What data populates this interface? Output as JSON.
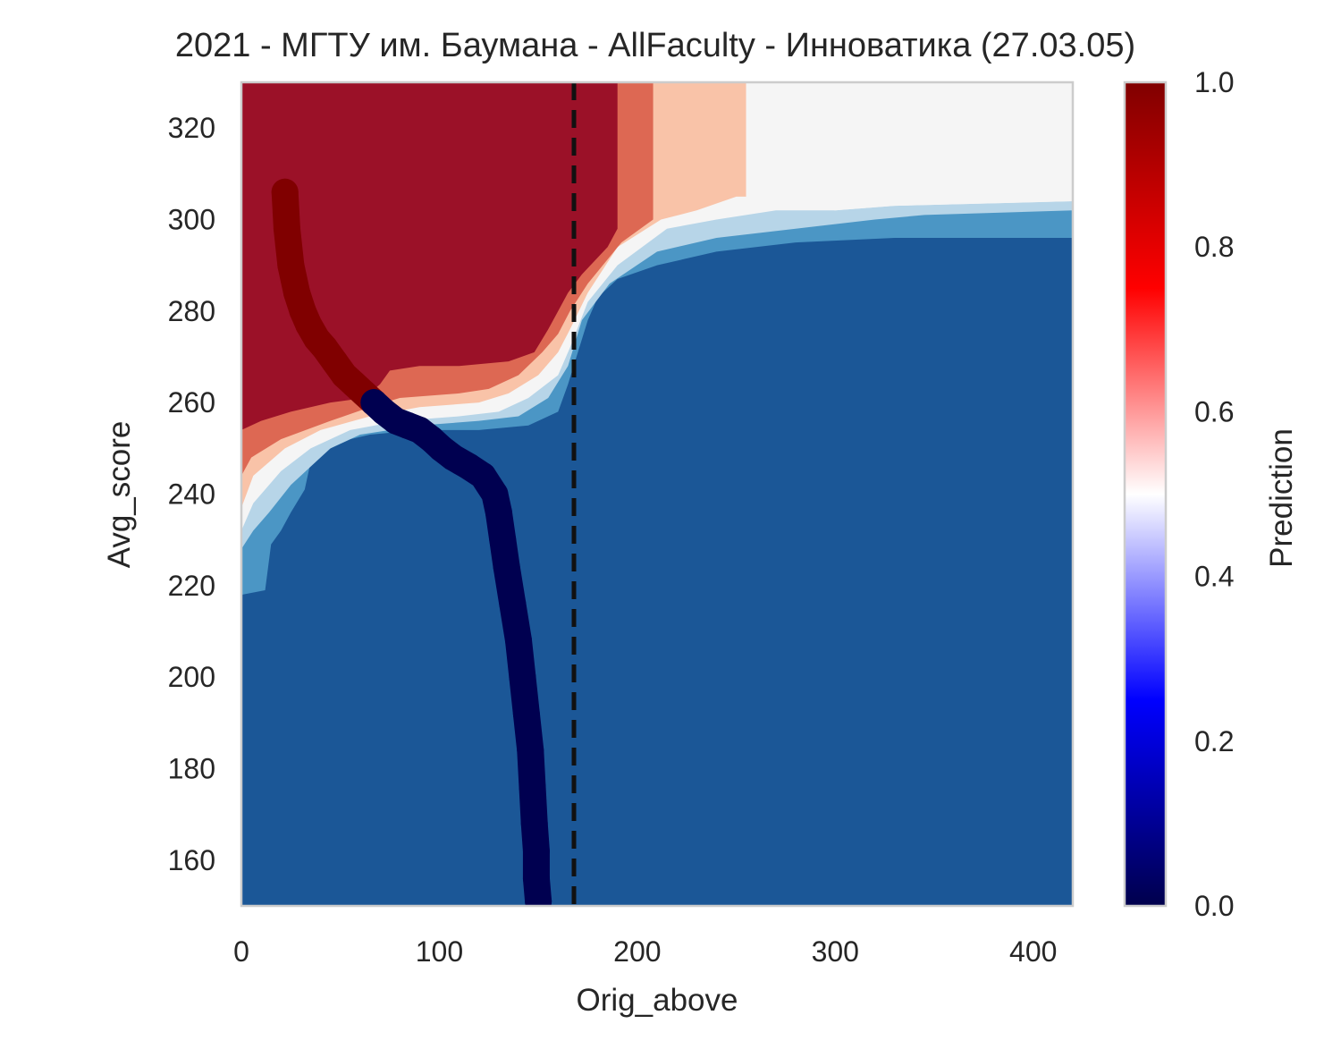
{
  "chart_data": {
    "type": "heatmap",
    "title": "2021 - МГТУ им. Баумана - AllFaculty - Инноватика (27.03.05)",
    "xlabel": "Orig_above",
    "ylabel": "Avg_score",
    "xlim": [
      0,
      420
    ],
    "ylim": [
      150,
      330
    ],
    "xticks": [
      0,
      100,
      200,
      300,
      400
    ],
    "yticks": [
      160,
      180,
      200,
      220,
      240,
      260,
      280,
      300,
      320
    ],
    "grid": false,
    "colorbar": {
      "label": "Prediction",
      "range": [
        0,
        1
      ],
      "ticks": [
        "0.0",
        "0.2",
        "0.4",
        "0.6",
        "0.8",
        "1.0"
      ],
      "colormap": "seismic"
    },
    "vertical_line": {
      "x": 168,
      "style": "dashed",
      "color": "#111111"
    },
    "contour_levels": [
      {
        "level": "0.0-0.1",
        "color": "#1b5797"
      },
      {
        "level": "0.1-0.2",
        "color": "#4b96c5"
      },
      {
        "level": "0.2-0.4",
        "color": "#b7d5e8"
      },
      {
        "level": "0.4-0.6",
        "color": "#f5f5f5"
      },
      {
        "level": "0.6-0.8",
        "color": "#f9c3a8"
      },
      {
        "level": "0.8-0.9",
        "color": "#dd6853"
      },
      {
        "level": "0.9-1.0",
        "color": "#9b1128"
      }
    ],
    "level_boundaries": [
      {
        "between": "red/salmon",
        "points": [
          [
            0,
            254
          ],
          [
            10,
            256
          ],
          [
            25,
            258
          ],
          [
            45,
            260
          ],
          [
            62,
            261
          ],
          [
            70,
            264
          ],
          [
            75,
            267
          ],
          [
            90,
            268
          ],
          [
            110,
            268
          ],
          [
            135,
            269
          ],
          [
            148,
            271
          ],
          [
            155,
            276
          ],
          [
            160,
            280
          ],
          [
            165,
            284
          ],
          [
            172,
            288
          ],
          [
            185,
            294
          ],
          [
            190,
            298
          ],
          [
            190,
            330
          ]
        ]
      },
      {
        "between": "salmon/peach",
        "points": [
          [
            0,
            244
          ],
          [
            5,
            248
          ],
          [
            20,
            252
          ],
          [
            45,
            256
          ],
          [
            65,
            259
          ],
          [
            80,
            261
          ],
          [
            110,
            262
          ],
          [
            125,
            263
          ],
          [
            140,
            266
          ],
          [
            152,
            271
          ],
          [
            160,
            275
          ],
          [
            166,
            280
          ],
          [
            175,
            286
          ],
          [
            192,
            295
          ],
          [
            208,
            300
          ],
          [
            208,
            330
          ]
        ]
      },
      {
        "between": "peach/white",
        "points": [
          [
            0,
            237
          ],
          [
            6,
            244
          ],
          [
            22,
            250
          ],
          [
            40,
            254
          ],
          [
            65,
            257
          ],
          [
            90,
            259
          ],
          [
            120,
            260
          ],
          [
            135,
            262
          ],
          [
            150,
            266
          ],
          [
            160,
            271
          ],
          [
            166,
            276
          ],
          [
            175,
            284
          ],
          [
            190,
            294
          ],
          [
            212,
            300
          ],
          [
            230,
            302
          ],
          [
            250,
            305
          ],
          [
            255,
            305
          ],
          [
            255,
            330
          ]
        ]
      },
      {
        "between": "white/lightblue",
        "points": [
          [
            0,
            232
          ],
          [
            6,
            238
          ],
          [
            20,
            245
          ],
          [
            35,
            250
          ],
          [
            55,
            254
          ],
          [
            80,
            256
          ],
          [
            110,
            257
          ],
          [
            130,
            258
          ],
          [
            145,
            261
          ],
          [
            160,
            266
          ],
          [
            166,
            272
          ],
          [
            175,
            282
          ],
          [
            190,
            290
          ],
          [
            215,
            298
          ],
          [
            240,
            300
          ],
          [
            270,
            302
          ],
          [
            300,
            302
          ],
          [
            330,
            303
          ],
          [
            420,
            304
          ]
        ]
      },
      {
        "between": "lightblue/midblue",
        "points": [
          [
            0,
            228
          ],
          [
            6,
            232
          ],
          [
            14,
            236
          ],
          [
            25,
            242
          ],
          [
            35,
            246
          ],
          [
            45,
            250
          ],
          [
            60,
            253
          ],
          [
            90,
            255
          ],
          [
            120,
            256
          ],
          [
            140,
            257
          ],
          [
            155,
            261
          ],
          [
            165,
            268
          ],
          [
            172,
            278
          ],
          [
            186,
            286
          ],
          [
            210,
            293
          ],
          [
            240,
            296
          ],
          [
            280,
            298
          ],
          [
            320,
            300
          ],
          [
            345,
            301
          ],
          [
            420,
            302
          ]
        ]
      },
      {
        "between": "midblue/darkblue",
        "points": [
          [
            0,
            218
          ],
          [
            12,
            219
          ],
          [
            15,
            229
          ],
          [
            20,
            232
          ],
          [
            25,
            236
          ],
          [
            32,
            241
          ],
          [
            35,
            247
          ],
          [
            45,
            250
          ],
          [
            55,
            252
          ],
          [
            65,
            253
          ],
          [
            90,
            254
          ],
          [
            120,
            254
          ],
          [
            145,
            255
          ],
          [
            160,
            258
          ],
          [
            165,
            264
          ],
          [
            170,
            271
          ],
          [
            175,
            278
          ],
          [
            180,
            283
          ],
          [
            190,
            287
          ],
          [
            210,
            290
          ],
          [
            240,
            293
          ],
          [
            280,
            295
          ],
          [
            330,
            296
          ],
          [
            420,
            296
          ]
        ]
      }
    ],
    "series": [
      {
        "color": "#800000",
        "x": [
          22,
          23,
          25,
          28,
          31,
          34,
          38,
          42,
          47,
          52,
          57,
          62,
          67
        ],
        "y": [
          306,
          298,
          290,
          284,
          280,
          277,
          274,
          272,
          269,
          266,
          264,
          262,
          260
        ]
      },
      {
        "color": "#000050",
        "x": [
          67,
          72,
          78,
          84,
          90,
          96,
          101,
          107,
          115,
          122,
          128,
          130,
          132,
          134,
          137,
          140,
          142,
          144,
          146,
          147,
          148,
          149,
          149,
          150
        ],
        "y": [
          260,
          258,
          256,
          255,
          254,
          252,
          250,
          248,
          246,
          244,
          240,
          236,
          230,
          224,
          216,
          208,
          200,
          192,
          184,
          176,
          168,
          162,
          156,
          151
        ]
      }
    ]
  }
}
